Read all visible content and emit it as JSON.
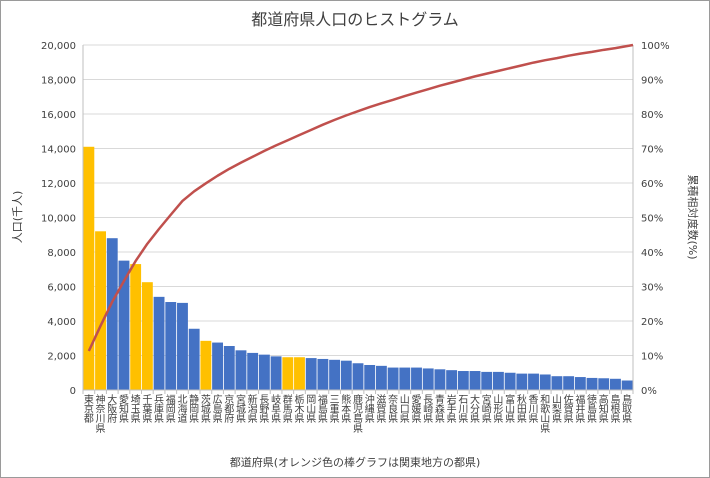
{
  "chart_data": {
    "type": "bar+line",
    "title": "都道府県人口のヒストグラム",
    "xlabel": "都道府県(オレンジ色の棒グラフは関東地方の都県)",
    "ylabel_left": "人口(千人)",
    "ylabel_right": "累積相対度数(%)",
    "ylim_left": [
      0,
      20000
    ],
    "ylim_right": [
      0,
      100
    ],
    "yticks_left": [
      "0",
      "2,000",
      "4,000",
      "6,000",
      "8,000",
      "10,000",
      "12,000",
      "14,000",
      "16,000",
      "18,000",
      "20,000"
    ],
    "yticks_right": [
      "0%",
      "10%",
      "20%",
      "30%",
      "40%",
      "50%",
      "60%",
      "70%",
      "80%",
      "90%",
      "100%"
    ],
    "grid": true,
    "colors": {
      "kanto": "#FFC000",
      "other": "#4472C4",
      "cumulative_line": "#C0504D"
    },
    "categories": [
      "東京都",
      "神奈川県",
      "大阪府",
      "愛知県",
      "埼玉県",
      "千葉県",
      "兵庫県",
      "福岡県",
      "北海道",
      "静岡県",
      "茨城県",
      "広島県",
      "京都府",
      "宮城県",
      "新潟県",
      "長野県",
      "岐阜県",
      "群馬県",
      "栃木県",
      "岡山県",
      "福島県",
      "三重県",
      "熊本県",
      "鹿児島県",
      "沖縄県",
      "滋賀県",
      "奈良県",
      "山口県",
      "愛媛県",
      "長崎県",
      "青森県",
      "岩手県",
      "石川県",
      "大分県",
      "宮崎県",
      "山形県",
      "富山県",
      "秋田県",
      "香川県",
      "和歌山県",
      "山梨県",
      "佐賀県",
      "福井県",
      "徳島県",
      "高知県",
      "島根県",
      "鳥取県"
    ],
    "kanto": [
      true,
      true,
      false,
      false,
      true,
      true,
      false,
      false,
      false,
      false,
      true,
      false,
      false,
      false,
      false,
      false,
      false,
      true,
      true,
      false,
      false,
      false,
      false,
      false,
      false,
      false,
      false,
      false,
      false,
      false,
      false,
      false,
      false,
      false,
      false,
      false,
      false,
      false,
      false,
      false,
      false,
      false,
      false,
      false,
      false,
      false,
      false
    ],
    "values": [
      14100,
      9200,
      8800,
      7500,
      7300,
      6250,
      5400,
      5100,
      5050,
      3550,
      2850,
      2750,
      2550,
      2300,
      2150,
      2050,
      1950,
      1900,
      1900,
      1850,
      1800,
      1750,
      1700,
      1550,
      1450,
      1400,
      1300,
      1300,
      1300,
      1250,
      1200,
      1150,
      1100,
      1100,
      1050,
      1050,
      1000,
      950,
      950,
      900,
      800,
      800,
      750,
      700,
      680,
      650,
      550
    ],
    "cumulative_percent": [
      11.3,
      18.6,
      25.6,
      31.6,
      37.4,
      42.4,
      46.7,
      50.8,
      54.8,
      57.6,
      59.9,
      62.1,
      64.1,
      65.9,
      67.6,
      69.3,
      70.9,
      72.4,
      73.9,
      75.4,
      76.9,
      78.3,
      79.6,
      80.8,
      82.0,
      83.1,
      84.1,
      85.2,
      86.2,
      87.2,
      88.2,
      89.1,
      90.0,
      90.9,
      91.7,
      92.5,
      93.3,
      94.1,
      94.9,
      95.6,
      96.2,
      96.9,
      97.5,
      98.0,
      98.6,
      99.1,
      100.0
    ]
  }
}
